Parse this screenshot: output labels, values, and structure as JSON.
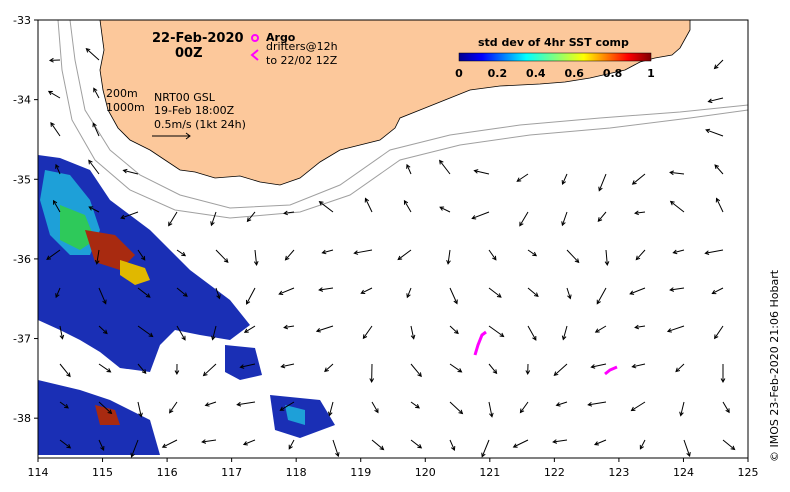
{
  "title": {
    "date": "22-Feb-2020",
    "time": "00Z"
  },
  "legend": {
    "argo_label": "Argo",
    "drifters_label": "drifters@12h",
    "drifters_sub": "to 22/02 12Z",
    "argo_color": "#ff00ff",
    "drifter_color": "#ff00ff"
  },
  "isobaths": {
    "label_200": "200m",
    "label_1000": "1000m"
  },
  "current_info": {
    "source": "NRT00 GSL",
    "date": "19-Feb 18:00Z",
    "scale": "0.5m/s (1kt 24h)"
  },
  "colorbar": {
    "title": "std dev of 4hr SST comp",
    "ticks": [
      "0",
      "0.2",
      "0.4",
      "0.6",
      "0.8",
      "1"
    ]
  },
  "axes": {
    "x_ticks": [
      "114",
      "115",
      "116",
      "117",
      "118",
      "119",
      "120",
      "121",
      "122",
      "123",
      "124",
      "125"
    ],
    "y_ticks": [
      "-33",
      "-34",
      "-35",
      "-36",
      "-37",
      "-38"
    ],
    "x_range": [
      114,
      125
    ],
    "y_range": [
      -38.5,
      -33
    ]
  },
  "credit": "© IMOS 23-Feb-2020 21:06 Hobart",
  "colors": {
    "land": "#fcc89b",
    "frame": "#000000"
  }
}
